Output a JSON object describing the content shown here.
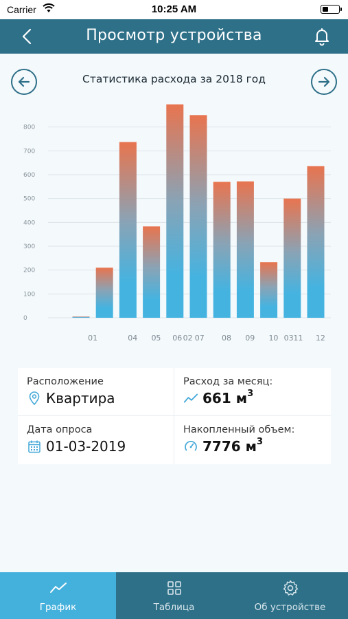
{
  "status_bar": {
    "carrier": "Carrier",
    "time": "10:25 AM"
  },
  "nav": {
    "title": "Просмотр устройства"
  },
  "chart_header": {
    "title": "Статистика расхода за 2018 год"
  },
  "chart_data": {
    "type": "bar",
    "title": "Статистика расхода за 2018 год",
    "xlabel": "",
    "ylabel": "",
    "ylim": [
      0,
      900
    ],
    "y_ticks": [
      0,
      100,
      200,
      300,
      400,
      500,
      600,
      700,
      800
    ],
    "grid": true,
    "legend": "none",
    "gradient": {
      "top": "#e8744f",
      "bottom": "#45b3e0"
    },
    "bars": [
      {
        "label": "01",
        "value": 5
      },
      {
        "label": "",
        "value": 210
      },
      {
        "label": "04",
        "value": 737
      },
      {
        "label": "05",
        "value": 383
      },
      {
        "label": "06",
        "value": 895
      },
      {
        "label": "",
        "value": 850
      },
      {
        "label": "08",
        "value": 570
      },
      {
        "label": "09",
        "value": 572
      },
      {
        "label": "",
        "value": 233
      },
      {
        "label": "",
        "value": 500
      },
      {
        "label": "12",
        "value": 636
      }
    ],
    "x_labels": [
      {
        "text": "01",
        "at": 1.5
      },
      {
        "text": "04",
        "at": 3.2
      },
      {
        "text": "05",
        "at": 4.2
      },
      {
        "text": "06",
        "at": 5.1
      },
      {
        "text": "02",
        "at": 5.55
      },
      {
        "text": "07",
        "at": 6.05
      },
      {
        "text": "08",
        "at": 7.2
      },
      {
        "text": "09",
        "at": 8.2
      },
      {
        "text": "10",
        "at": 9.2
      },
      {
        "text": "03",
        "at": 9.85
      },
      {
        "text": "11",
        "at": 10.25
      },
      {
        "text": "12",
        "at": 11.2
      }
    ]
  },
  "info": {
    "location_label": "Расположение",
    "location_value": "Квартира",
    "monthly_label": "Расход за месяц:",
    "monthly_value": "661 м",
    "poll_label": "Дата опроса",
    "poll_value": "01-03-2019",
    "accum_label": "Накопленный объем:",
    "accum_value": "7776 м",
    "unit_sup": "3"
  },
  "tabs": [
    {
      "label": "График",
      "icon": "chart-line-icon",
      "active": true
    },
    {
      "label": "Таблица",
      "icon": "grid-icon",
      "active": false
    },
    {
      "label": "Об устройстве",
      "icon": "gear-icon",
      "active": false
    }
  ],
  "colors": {
    "accent": "#2e7088",
    "active_tab": "#44b0dc",
    "icon_blue": "#44a8d8"
  }
}
